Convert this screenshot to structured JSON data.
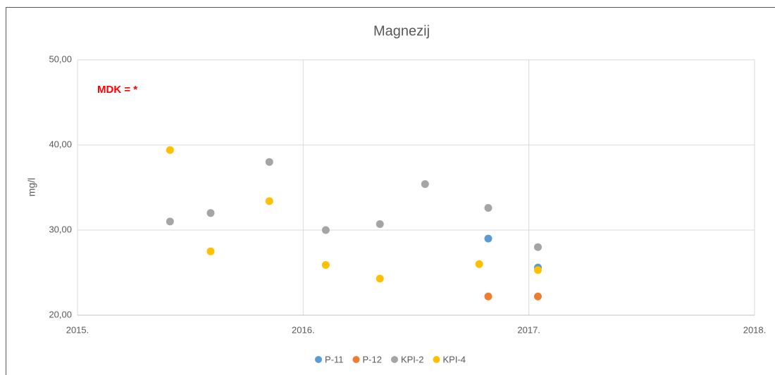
{
  "chart_data": {
    "type": "scatter",
    "title": "Magnezij",
    "ylabel": "mg/l",
    "annotation": "MDK = *",
    "xlim": [
      2015,
      2018
    ],
    "xticks": [
      {
        "value": 2015,
        "label": "2015."
      },
      {
        "value": 2016,
        "label": "2016."
      },
      {
        "value": 2017,
        "label": "2017."
      },
      {
        "value": 2018,
        "label": "2018."
      }
    ],
    "ylim": [
      20,
      50
    ],
    "yticks": [
      {
        "value": 20,
        "label": "20,00"
      },
      {
        "value": 30,
        "label": "30,00"
      },
      {
        "value": 40,
        "label": "40,00"
      },
      {
        "value": 50,
        "label": "50,00"
      }
    ],
    "grid": true,
    "legend": "bottom",
    "series": [
      {
        "name": "P-11",
        "color": "#5b9bd5",
        "x": [
          2016.82,
          2017.04
        ],
        "values": [
          29.0,
          25.6
        ]
      },
      {
        "name": "P-12",
        "color": "#ed7d31",
        "x": [
          2016.82,
          2017.04
        ],
        "values": [
          22.2,
          22.2
        ]
      },
      {
        "name": "KPI-2",
        "color": "#a5a5a5",
        "x": [
          2015.41,
          2015.59,
          2015.85,
          2016.1,
          2016.34,
          2016.54,
          2016.82,
          2017.04
        ],
        "values": [
          31.0,
          32.0,
          38.0,
          30.0,
          30.7,
          35.4,
          32.6,
          28.0
        ]
      },
      {
        "name": "KPI-4",
        "color": "#ffc000",
        "x": [
          2015.41,
          2015.59,
          2015.85,
          2016.1,
          2016.34,
          2016.78,
          2017.04
        ],
        "values": [
          39.4,
          27.5,
          33.4,
          25.9,
          24.3,
          26.0,
          25.3
        ]
      }
    ]
  }
}
